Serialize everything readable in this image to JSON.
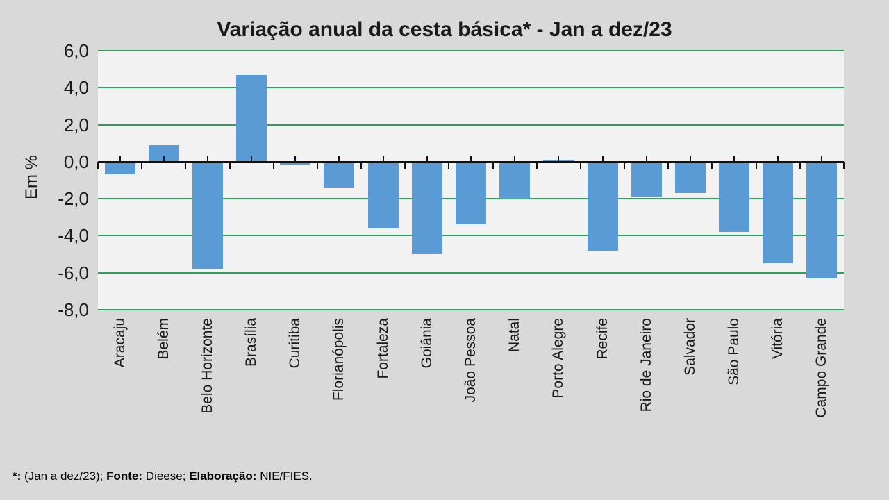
{
  "chart_data": {
    "type": "bar",
    "title": "Variação anual da cesta básica* - Jan a dez/23",
    "ylabel": "Em %",
    "xlabel": "",
    "ylim": [
      -8,
      6
    ],
    "ytick_step": 2,
    "yticks": [
      6,
      4,
      2,
      0,
      -2,
      -4,
      -6,
      -8
    ],
    "ytick_labels": [
      "6,0",
      "4,0",
      "2,0",
      "0,0",
      "-2,0",
      "-4,0",
      "-6,0",
      "-8,0"
    ],
    "grid": true,
    "legend": false,
    "categories": [
      "Aracaju",
      "Belém",
      "Belo Horizonte",
      "Brasília",
      "Curitiba",
      "Florianópolis",
      "Fortaleza",
      "Goiânia",
      "João Pessoa",
      "Natal",
      "Porto Alegre",
      "Recife",
      "Rio de Janeiro",
      "Salvador",
      "São Paulo",
      "Vitória",
      "Campo Grande"
    ],
    "values": [
      -0.7,
      0.9,
      -5.8,
      4.7,
      -0.2,
      -1.4,
      -3.6,
      -5.0,
      -3.4,
      -2.0,
      0.1,
      -4.8,
      -1.9,
      -1.7,
      -3.8,
      -5.5,
      -6.3
    ],
    "colors": {
      "bar": "#5b9bd5",
      "gridline": "#27a45b",
      "axis": "#111111",
      "plot_bg": "#f2f2f2",
      "page_bg": "#d9d9d9",
      "text": "#1a1a1a"
    }
  },
  "footnote": {
    "marker": "*:",
    "period": " (Jan a dez/23); ",
    "source_label": "Fonte:",
    "source": " Dieese; ",
    "elaboration_label": "Elaboração:",
    "elaboration": " NIE/FIES."
  }
}
